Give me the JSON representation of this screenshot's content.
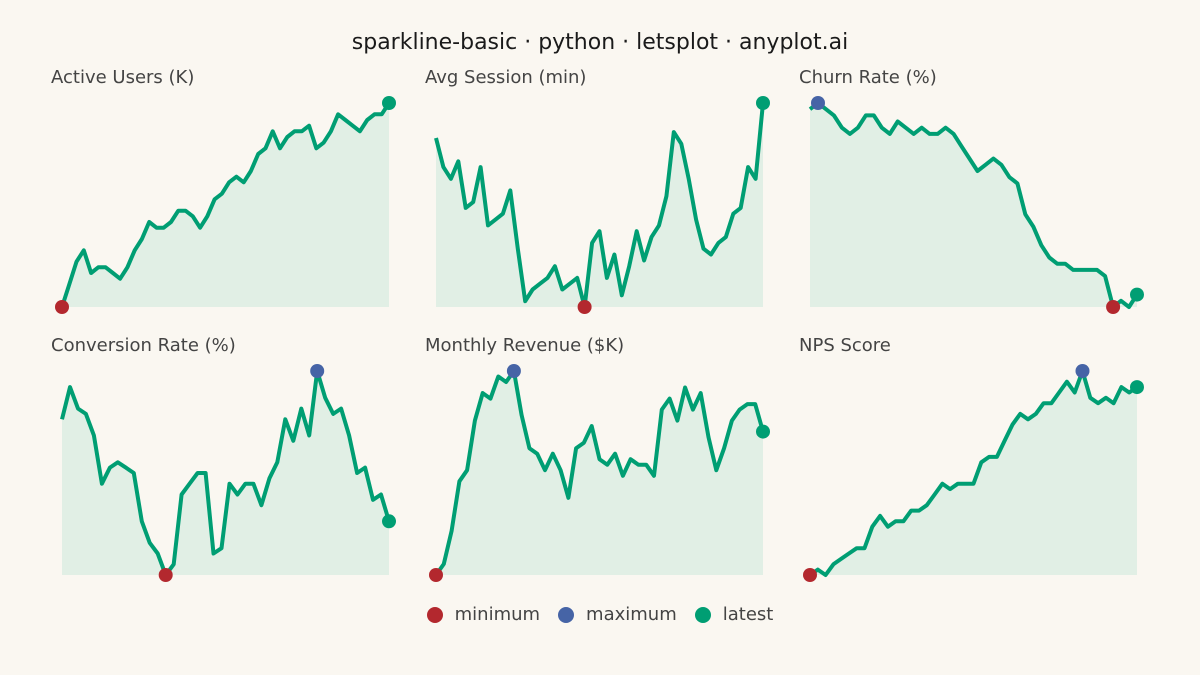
{
  "title": "sparkline-basic · python · letsplot · anyplot.ai",
  "colors": {
    "background": "#FAF7F1",
    "line": "#009E73",
    "fill": "#E1EFE5",
    "minimum": "#B3282E",
    "maximum": "#4664A6",
    "latest": "#009E73"
  },
  "legend": [
    {
      "label": "minimum",
      "color": "#B3282E"
    },
    {
      "label": "maximum",
      "color": "#4664A6"
    },
    {
      "label": "latest",
      "color": "#009E73"
    }
  ],
  "chart_data": [
    {
      "type": "area",
      "title": "Active Users (K)",
      "values": [
        0,
        4,
        8,
        10,
        6,
        7,
        7,
        6,
        5,
        7,
        10,
        12,
        15,
        14,
        14,
        15,
        17,
        17,
        16,
        14,
        16,
        19,
        20,
        22,
        23,
        22,
        24,
        27,
        28,
        31,
        28,
        30,
        31,
        31,
        32,
        28,
        29,
        31,
        34,
        33,
        32,
        31,
        33,
        34,
        34,
        36
      ]
    },
    {
      "type": "area",
      "title": "Avg Session (min)",
      "values": [
        29,
        24,
        22,
        25,
        17,
        18,
        24,
        14,
        15,
        16,
        20,
        10,
        1,
        3,
        4,
        5,
        7,
        3,
        4,
        5,
        0,
        11,
        13,
        5,
        9,
        2,
        7,
        13,
        8,
        12,
        14,
        19,
        30,
        28,
        22,
        15,
        10,
        9,
        11,
        12,
        16,
        17,
        24,
        22,
        35
      ]
    },
    {
      "type": "area",
      "title": "Churn Rate (%)",
      "values": [
        34,
        35,
        34,
        33,
        31,
        30,
        31,
        33,
        33,
        31,
        30,
        32,
        31,
        30,
        31,
        30,
        30,
        31,
        30,
        28,
        26,
        24,
        25,
        26,
        25,
        23,
        22,
        17,
        15,
        12,
        10,
        9,
        9,
        8,
        8,
        8,
        8,
        7,
        2,
        3,
        2,
        4
      ]
    },
    {
      "type": "area",
      "title": "Conversion Rate (%)",
      "values": [
        29,
        35,
        31,
        30,
        26,
        17,
        20,
        21,
        20,
        19,
        10,
        6,
        4,
        0,
        2,
        15,
        17,
        19,
        19,
        4,
        5,
        17,
        15,
        17,
        17,
        13,
        18,
        21,
        29,
        25,
        31,
        26,
        38,
        33,
        30,
        31,
        26,
        19,
        20,
        14,
        15,
        10
      ]
    },
    {
      "type": "area",
      "title": "Monthly Revenue ($K)",
      "values": [
        0,
        2,
        8,
        17,
        19,
        28,
        33,
        32,
        36,
        35,
        37,
        29,
        23,
        22,
        19,
        22,
        19,
        14,
        23,
        24,
        27,
        21,
        20,
        22,
        18,
        21,
        20,
        20,
        18,
        30,
        32,
        28,
        34,
        30,
        33,
        25,
        19,
        23,
        28,
        30,
        31,
        31,
        26
      ]
    },
    {
      "type": "area",
      "title": "NPS Score",
      "values": [
        0,
        1,
        0,
        2,
        3,
        4,
        5,
        5,
        9,
        11,
        9,
        10,
        10,
        12,
        12,
        13,
        15,
        17,
        16,
        17,
        17,
        17,
        21,
        22,
        22,
        25,
        28,
        30,
        29,
        30,
        32,
        32,
        34,
        36,
        34,
        38,
        33,
        32,
        33,
        32,
        35,
        34,
        35
      ]
    }
  ]
}
